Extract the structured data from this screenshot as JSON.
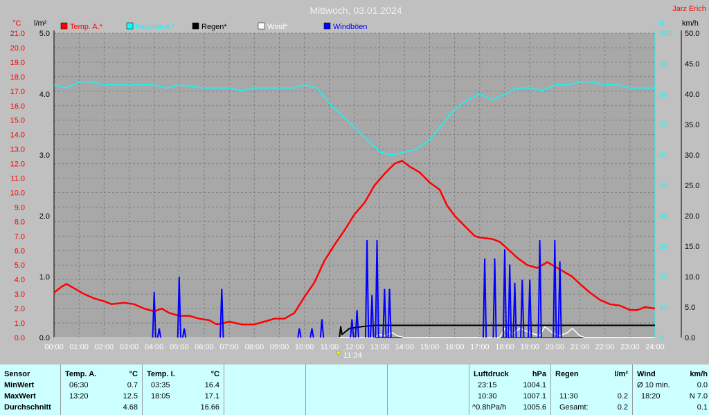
{
  "header": {
    "title": "Mittwoch, 03.01.2024",
    "author": "Jarz Erich"
  },
  "axis_units": {
    "left1": "°C",
    "left2": "l/m²",
    "right1": "%",
    "right2": "km/h"
  },
  "chart_data": {
    "type": "line",
    "title": "Mittwoch, 03.01.2024",
    "x_range_hours": [
      0,
      24
    ],
    "x_tick_labels": [
      "00:00",
      "01:00",
      "02:00",
      "03:00",
      "04:00",
      "05:00",
      "06:00",
      "07:00",
      "08:00",
      "09:00",
      "10:00",
      "11:00",
      "12:00",
      "13:00",
      "14:00",
      "15:00",
      "16:00",
      "17:00",
      "18:00",
      "19:00",
      "20:00",
      "21:00",
      "22:00",
      "23:00",
      "24:00"
    ],
    "axes": {
      "temp_c": {
        "range": [
          0,
          21.0
        ],
        "ticks": [
          "0.0",
          "1.0",
          "2.0",
          "3.0",
          "4.0",
          "5.0",
          "6.0",
          "7.0",
          "8.0",
          "9.0",
          "10.0",
          "11.0",
          "12.0",
          "13.0",
          "14.0",
          "15.0",
          "16.0",
          "17.0",
          "18.0",
          "19.0",
          "20.0",
          "21.0"
        ],
        "color": "#ff0000"
      },
      "rain_lm2": {
        "range": [
          0,
          5.0
        ],
        "ticks": [
          "0.0",
          "1.0",
          "2.0",
          "3.0",
          "4.0",
          "5.0"
        ],
        "color": "#000000"
      },
      "humidity_pct": {
        "range": [
          0,
          100
        ],
        "ticks": [
          "0",
          "10",
          "20",
          "30",
          "40",
          "50",
          "60",
          "70",
          "80",
          "90",
          "100"
        ],
        "color": "#00ffff"
      },
      "wind_kmh": {
        "range": [
          0,
          50.0
        ],
        "ticks": [
          "0.0",
          "5.0",
          "10.0",
          "15.0",
          "20.0",
          "25.0",
          "30.0",
          "35.0",
          "40.0",
          "45.0",
          "50.0"
        ],
        "color": "#000000"
      }
    },
    "grid": true,
    "marker_label": "11:24",
    "series": [
      {
        "name": "Temp. A.*",
        "axis": "temp_c",
        "color": "#ff0000",
        "points": [
          [
            0,
            3.1
          ],
          [
            0.3,
            3.5
          ],
          [
            0.5,
            3.7
          ],
          [
            0.8,
            3.4
          ],
          [
            1.2,
            3.0
          ],
          [
            1.6,
            2.7
          ],
          [
            2.0,
            2.5
          ],
          [
            2.3,
            2.3
          ],
          [
            2.8,
            2.4
          ],
          [
            3.2,
            2.3
          ],
          [
            3.6,
            2.0
          ],
          [
            4.0,
            1.8
          ],
          [
            4.3,
            2.0
          ],
          [
            4.6,
            1.7
          ],
          [
            5.0,
            1.5
          ],
          [
            5.4,
            1.5
          ],
          [
            5.8,
            1.3
          ],
          [
            6.2,
            1.2
          ],
          [
            6.5,
            0.9
          ],
          [
            7.0,
            1.1
          ],
          [
            7.5,
            0.9
          ],
          [
            8.0,
            0.9
          ],
          [
            8.4,
            1.1
          ],
          [
            8.8,
            1.3
          ],
          [
            9.2,
            1.3
          ],
          [
            9.6,
            1.7
          ],
          [
            10.0,
            2.8
          ],
          [
            10.4,
            3.8
          ],
          [
            10.8,
            5.3
          ],
          [
            11.2,
            6.4
          ],
          [
            11.6,
            7.4
          ],
          [
            12.0,
            8.5
          ],
          [
            12.4,
            9.3
          ],
          [
            12.8,
            10.5
          ],
          [
            13.2,
            11.3
          ],
          [
            13.6,
            12.0
          ],
          [
            13.9,
            12.2
          ],
          [
            14.2,
            11.8
          ],
          [
            14.6,
            11.4
          ],
          [
            15.0,
            10.7
          ],
          [
            15.4,
            10.2
          ],
          [
            15.7,
            9.1
          ],
          [
            16.0,
            8.4
          ],
          [
            16.4,
            7.7
          ],
          [
            16.8,
            7.0
          ],
          [
            17.0,
            6.9
          ],
          [
            17.5,
            6.8
          ],
          [
            17.8,
            6.6
          ],
          [
            18.0,
            6.3
          ],
          [
            18.5,
            5.5
          ],
          [
            18.9,
            5.0
          ],
          [
            19.3,
            4.8
          ],
          [
            19.7,
            5.2
          ],
          [
            20.0,
            4.9
          ],
          [
            20.4,
            4.5
          ],
          [
            20.7,
            4.2
          ],
          [
            21.0,
            3.7
          ],
          [
            21.4,
            3.1
          ],
          [
            21.8,
            2.6
          ],
          [
            22.2,
            2.3
          ],
          [
            22.6,
            2.2
          ],
          [
            23.0,
            1.9
          ],
          [
            23.3,
            1.9
          ],
          [
            23.6,
            2.1
          ],
          [
            24.0,
            2.0
          ]
        ]
      },
      {
        "name": "Feuchte A.*",
        "axis": "humidity_pct",
        "color": "#00ffff",
        "points": [
          [
            0,
            83
          ],
          [
            0.5,
            82
          ],
          [
            1.0,
            84
          ],
          [
            1.5,
            84
          ],
          [
            2.0,
            83
          ],
          [
            3.0,
            83
          ],
          [
            4.0,
            83
          ],
          [
            4.5,
            82
          ],
          [
            5.0,
            83
          ],
          [
            6.0,
            82
          ],
          [
            7.0,
            82
          ],
          [
            7.5,
            81
          ],
          [
            8.0,
            82
          ],
          [
            9.0,
            82
          ],
          [
            9.5,
            82
          ],
          [
            10.0,
            83
          ],
          [
            10.5,
            82
          ],
          [
            11.0,
            77
          ],
          [
            11.5,
            73
          ],
          [
            12.0,
            69
          ],
          [
            12.5,
            65
          ],
          [
            13.0,
            61
          ],
          [
            13.5,
            60
          ],
          [
            14.0,
            61
          ],
          [
            14.5,
            62
          ],
          [
            15.0,
            65
          ],
          [
            15.5,
            70
          ],
          [
            16.0,
            75
          ],
          [
            16.5,
            78
          ],
          [
            17.0,
            80
          ],
          [
            17.5,
            78
          ],
          [
            18.0,
            80
          ],
          [
            18.5,
            82
          ],
          [
            19.0,
            82
          ],
          [
            19.5,
            81
          ],
          [
            20.0,
            83
          ],
          [
            20.5,
            83
          ],
          [
            21.0,
            84
          ],
          [
            21.5,
            84
          ],
          [
            22.0,
            83
          ],
          [
            22.5,
            83
          ],
          [
            23.0,
            82
          ],
          [
            23.5,
            82
          ],
          [
            24.0,
            82
          ]
        ]
      },
      {
        "name": "Regen*",
        "axis": "rain_lm2",
        "color": "#000000",
        "points": [
          [
            0,
            0
          ],
          [
            11.4,
            0
          ],
          [
            11.45,
            0.18
          ],
          [
            11.5,
            0.05
          ],
          [
            11.8,
            0.15
          ],
          [
            12.3,
            0.18
          ],
          [
            12.8,
            0.2
          ],
          [
            13.5,
            0.2
          ],
          [
            24.0,
            0.2
          ]
        ]
      },
      {
        "name": "Wind*",
        "axis": "wind_kmh",
        "color": "#ffffff",
        "points": [
          [
            0,
            0
          ],
          [
            12.8,
            0
          ],
          [
            13.0,
            0.5
          ],
          [
            13.2,
            0.3
          ],
          [
            13.5,
            0.8
          ],
          [
            13.7,
            0.3
          ],
          [
            14.0,
            0
          ],
          [
            17.8,
            0
          ],
          [
            18.0,
            1.5
          ],
          [
            18.3,
            0.5
          ],
          [
            18.6,
            1.5
          ],
          [
            19.0,
            0.8
          ],
          [
            19.4,
            0.3
          ],
          [
            19.6,
            1.8
          ],
          [
            19.9,
            0.8
          ],
          [
            20.2,
            0.3
          ],
          [
            20.5,
            0.8
          ],
          [
            20.7,
            1.5
          ],
          [
            21.0,
            0.3
          ],
          [
            21.2,
            0
          ],
          [
            24.0,
            0
          ]
        ]
      },
      {
        "name": "Windböen",
        "axis": "wind_kmh",
        "color": "#0000ff",
        "spikes": [
          [
            4.0,
            7.5
          ],
          [
            4.2,
            1.5
          ],
          [
            5.0,
            10.0
          ],
          [
            5.2,
            1.5
          ],
          [
            6.7,
            8.0
          ],
          [
            9.8,
            1.5
          ],
          [
            10.3,
            1.5
          ],
          [
            10.7,
            3.0
          ],
          [
            11.9,
            3.0
          ],
          [
            12.1,
            4.5
          ],
          [
            12.5,
            16.0
          ],
          [
            12.7,
            7.0
          ],
          [
            12.9,
            16.0
          ],
          [
            13.2,
            8.0
          ],
          [
            13.4,
            8.0
          ],
          [
            17.2,
            13.0
          ],
          [
            17.6,
            13.0
          ],
          [
            18.0,
            14.5
          ],
          [
            18.2,
            12.0
          ],
          [
            18.4,
            9.0
          ],
          [
            18.7,
            9.5
          ],
          [
            19.0,
            9.5
          ],
          [
            19.4,
            16.0
          ],
          [
            20.0,
            16.0
          ],
          [
            20.2,
            12.5
          ]
        ],
        "width_h": 0.12
      }
    ]
  },
  "legend": [
    {
      "label": "Temp. A.*",
      "color": "#ff0000"
    },
    {
      "label": "Feuchte A.*",
      "color": "#00ffff"
    },
    {
      "label": "Regen*",
      "color": "#000000"
    },
    {
      "label": "Wind*",
      "color": "#ffffff"
    },
    {
      "label": "Windböen",
      "color": "#0000ff"
    }
  ],
  "table": {
    "sensor": {
      "header": "Sensor",
      "rows": [
        "MinWert",
        "MaxWert",
        "Durchschnitt"
      ]
    },
    "temp_a": {
      "header": "Temp. A.",
      "unit": "°C",
      "rows": [
        [
          "06:30",
          "0.7"
        ],
        [
          "13:20",
          "12.5"
        ],
        [
          "",
          "4.68"
        ]
      ]
    },
    "temp_i": {
      "header": "Temp. I.",
      "unit": "°C",
      "rows": [
        [
          "03:35",
          "16.4"
        ],
        [
          "18:05",
          "17.1"
        ],
        [
          "",
          "16.66"
        ]
      ]
    },
    "pressure": {
      "header": "Luftdruck",
      "unit": "hPa",
      "rows": [
        [
          "23:15",
          "1004.1"
        ],
        [
          "10:30",
          "1007.1"
        ],
        [
          "^0.8hPa/h",
          "1005.6"
        ]
      ]
    },
    "rain": {
      "header": "Regen",
      "unit": "l/m²",
      "rows": [
        [
          "",
          ""
        ],
        [
          "11:30",
          "0.2"
        ],
        [
          "Gesamt:",
          "0.2"
        ]
      ]
    },
    "wind": {
      "header": "Wind",
      "unit": "km/h",
      "rows": [
        [
          "Ø 10 min.",
          "0.0"
        ],
        [
          "18:20",
          "N 7.0"
        ],
        [
          "",
          "0.1"
        ]
      ]
    }
  }
}
